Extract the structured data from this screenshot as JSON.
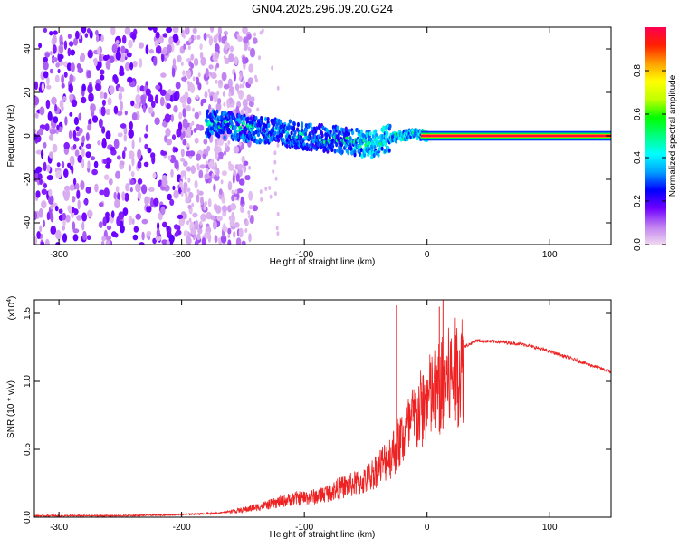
{
  "chart_data": [
    {
      "type": "heatmap",
      "title": "GN04.2025.296.09.20.G24",
      "xlabel": "Height of straight line (km)",
      "ylabel": "Frequency (Hz)",
      "xlim": [
        -320,
        150
      ],
      "ylim": [
        -50,
        50
      ],
      "xticks": [
        -300,
        -200,
        -100,
        0,
        100
      ],
      "xtick_labels": [
        "-300",
        "-200",
        "-100",
        "0",
        "100"
      ],
      "yticks": [
        -40,
        -20,
        0,
        20,
        40
      ],
      "ytick_labels": [
        "-40",
        "-20",
        "0",
        "20",
        "40"
      ],
      "colorbar": {
        "label": "Normalized spectral amplitude",
        "range": [
          0,
          1
        ],
        "ticks": [
          0.0,
          0.2,
          0.4,
          0.6,
          0.8
        ],
        "tick_labels": [
          "0.0",
          "0.2",
          "0.4",
          "0.6",
          "0.8"
        ],
        "colors": [
          "#f0d8f0",
          "#c080f0",
          "#7000ff",
          "#0000ff",
          "#00a0ff",
          "#00ffff",
          "#00ff80",
          "#00ff00",
          "#c0ff00",
          "#ffff00",
          "#ffa000",
          "#ff2000",
          "#ff0050"
        ]
      },
      "regions": {
        "noise_extent_km": [
          -320,
          -160
        ],
        "signal_start_km": -180,
        "converge_km": -30,
        "trend": [
          {
            "x": -180,
            "y": 6
          },
          {
            "x": -140,
            "y": 3
          },
          {
            "x": -100,
            "y": 0
          },
          {
            "x": -70,
            "y": -2
          },
          {
            "x": -45,
            "y": -4
          },
          {
            "x": -30,
            "y": -1
          },
          {
            "x": -10,
            "y": 1
          },
          {
            "x": 0,
            "y": 0
          },
          {
            "x": 150,
            "y": 0
          }
        ]
      }
    },
    {
      "type": "line",
      "title": "",
      "xlabel": "Height of straight line (km)",
      "ylabel": "SNR (10 * v/v)",
      "multiplier_label": "(x10",
      "multiplier_exp": "4",
      "multiplier_close": ")",
      "xlim": [
        -320,
        150
      ],
      "ylim": [
        0,
        1.6
      ],
      "xticks": [
        -300,
        -200,
        -100,
        0,
        100
      ],
      "xtick_labels": [
        "-300",
        "-200",
        "-100",
        "0",
        "100"
      ],
      "yticks": [
        0.0,
        0.5,
        1.0,
        1.5
      ],
      "ytick_labels": [
        "0.0",
        "0.5",
        "1.0",
        "1.5"
      ],
      "color": "#ee2222",
      "series": [
        {
          "name": "SNR",
          "x": [
            -320,
            -250,
            -200,
            -170,
            -150,
            -130,
            -110,
            -90,
            -70,
            -50,
            -40,
            -30,
            -20,
            -10,
            0,
            10,
            20,
            30,
            40,
            60,
            80,
            100,
            120,
            150
          ],
          "y": [
            0.01,
            0.01,
            0.02,
            0.03,
            0.06,
            0.1,
            0.15,
            0.17,
            0.24,
            0.3,
            0.4,
            0.5,
            0.65,
            0.8,
            0.95,
            1.05,
            1.15,
            1.25,
            1.3,
            1.29,
            1.27,
            1.22,
            1.16,
            1.07
          ]
        }
      ],
      "spikes": [
        {
          "x": -25,
          "y": 1.56
        },
        {
          "x": 10,
          "y": 1.55
        },
        {
          "x": 13,
          "y": 1.6
        }
      ]
    }
  ]
}
